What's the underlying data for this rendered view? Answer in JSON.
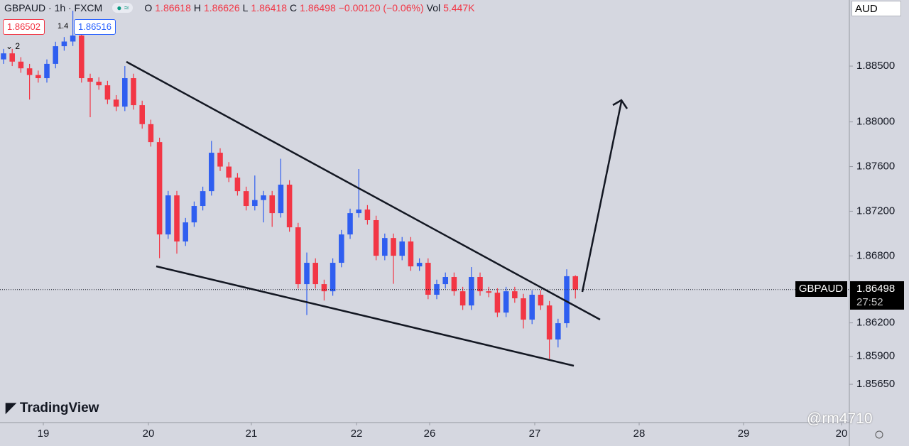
{
  "ui": {
    "symbol": "GBPAUD · 1h · FXCM",
    "o_key": "O",
    "h_key": "H",
    "l_key": "L",
    "c_key": "C",
    "change": "−0.00120 (−0.06%)",
    "vol_key": "Vol",
    "vol": "5.447K",
    "sell": "1.86502",
    "spread": "1.4",
    "buy": "1.86516",
    "indicators": "2",
    "currency": "AUD",
    "price_tag": "GBPAUD",
    "countdown": "27:52",
    "brand": "TradingView",
    "watermark": "@rm4710"
  },
  "chart_data": {
    "type": "candlestick",
    "up_color": "#2f5ef0",
    "down_color": "#f23645",
    "open": [
      1.8856,
      1.88614,
      1.8854,
      1.8848,
      1.8842,
      1.88392,
      1.8852,
      1.88678,
      1.8872,
      1.88774,
      1.88392,
      1.8836,
      1.88328,
      1.882,
      1.88137,
      1.88392,
      1.8815,
      1.8798,
      1.87819,
      1.86992,
      1.87342,
      1.86929,
      1.871,
      1.87247,
      1.8738,
      1.87724,
      1.876,
      1.87501,
      1.8738,
      1.87247,
      1.873,
      1.87342,
      1.87183,
      1.87438,
      1.87056,
      1.86547,
      1.86738,
      1.86547,
      1.86483,
      1.86738,
      1.86992,
      1.87183,
      1.87215,
      1.8712,
      1.86801,
      1.8696,
      1.86801,
      1.86929,
      1.86706,
      1.86738,
      1.86452,
      1.86547,
      1.86611,
      1.86483,
      1.86356,
      1.86611,
      1.86483,
      1.8647,
      1.86292,
      1.86483,
      1.8642,
      1.86229,
      1.86452,
      1.86356,
      1.86051,
      1.86197,
      1.86618
    ],
    "high": [
      1.88654,
      1.88654,
      1.8858,
      1.8852,
      1.8846,
      1.8856,
      1.88718,
      1.8876,
      1.88996,
      1.88814,
      1.88432,
      1.884,
      1.88368,
      1.8824,
      1.885,
      1.88432,
      1.8819,
      1.8802,
      1.87859,
      1.87382,
      1.87382,
      1.8714,
      1.87287,
      1.8742,
      1.8783,
      1.87764,
      1.8764,
      1.87541,
      1.8742,
      1.8752,
      1.87382,
      1.87382,
      1.8767,
      1.87478,
      1.87096,
      1.8683,
      1.86778,
      1.86587,
      1.86778,
      1.87032,
      1.87223,
      1.87578,
      1.87255,
      1.8716,
      1.87,
      1.87,
      1.86969,
      1.86969,
      1.86778,
      1.86778,
      1.86587,
      1.86651,
      1.86651,
      1.86523,
      1.867,
      1.86651,
      1.86523,
      1.8651,
      1.86523,
      1.86523,
      1.8646,
      1.86492,
      1.86492,
      1.86396,
      1.86237,
      1.8668,
      1.86626
    ],
    "low": [
      1.8852,
      1.885,
      1.8844,
      1.882,
      1.88352,
      1.88352,
      1.8848,
      1.88638,
      1.8868,
      1.88352,
      1.88042,
      1.88288,
      1.8816,
      1.88097,
      1.88097,
      1.8811,
      1.8794,
      1.87779,
      1.8678,
      1.86952,
      1.8682,
      1.86889,
      1.8706,
      1.87207,
      1.8734,
      1.8756,
      1.87461,
      1.8734,
      1.87207,
      1.87207,
      1.871,
      1.8706,
      1.87143,
      1.87016,
      1.86507,
      1.8627,
      1.86507,
      1.864,
      1.86443,
      1.86698,
      1.86952,
      1.87143,
      1.8708,
      1.86761,
      1.86761,
      1.8655,
      1.86761,
      1.86666,
      1.86666,
      1.86412,
      1.86412,
      1.86507,
      1.86443,
      1.86316,
      1.86316,
      1.86443,
      1.8643,
      1.86252,
      1.86252,
      1.8638,
      1.8615,
      1.86189,
      1.86316,
      1.85879,
      1.8598,
      1.86157,
      1.86418
    ],
    "close": [
      1.88614,
      1.8854,
      1.8848,
      1.8842,
      1.88392,
      1.8852,
      1.88678,
      1.8872,
      1.88774,
      1.88392,
      1.8836,
      1.88328,
      1.882,
      1.88137,
      1.88392,
      1.8815,
      1.8798,
      1.87819,
      1.86992,
      1.87342,
      1.86929,
      1.871,
      1.87247,
      1.8738,
      1.87724,
      1.876,
      1.87501,
      1.8738,
      1.87247,
      1.873,
      1.87342,
      1.87183,
      1.87438,
      1.87056,
      1.86547,
      1.86738,
      1.86547,
      1.86483,
      1.86738,
      1.86992,
      1.87183,
      1.87215,
      1.8712,
      1.86801,
      1.8696,
      1.86801,
      1.86929,
      1.86706,
      1.86738,
      1.86452,
      1.86547,
      1.86611,
      1.86483,
      1.86356,
      1.86611,
      1.86483,
      1.8647,
      1.86292,
      1.86483,
      1.8642,
      1.86229,
      1.86452,
      1.86356,
      1.86051,
      1.86197,
      1.86618,
      1.86498
    ],
    "ylim": [
      1.85307,
      1.89092
    ],
    "yticks": [
      {
        "value": 1.885,
        "label": "1.88500"
      },
      {
        "value": 1.88,
        "label": "1.88000"
      },
      {
        "value": 1.876,
        "label": "1.87600"
      },
      {
        "value": 1.872,
        "label": "1.87200"
      },
      {
        "value": 1.868,
        "label": "1.86800"
      },
      {
        "value": 1.862,
        "label": "1.86200"
      },
      {
        "value": 1.859,
        "label": "1.85900"
      },
      {
        "value": 1.8565,
        "label": "1.85650"
      }
    ],
    "xlim": [
      -0.41,
      97.62
    ],
    "xticks": [
      {
        "value": 4.59,
        "label": "19"
      },
      {
        "value": 16.72,
        "label": "20"
      },
      {
        "value": 28.6,
        "label": "21"
      },
      {
        "value": 40.74,
        "label": "22"
      },
      {
        "value": 49.18,
        "label": "26"
      },
      {
        "value": 61.31,
        "label": "27"
      },
      {
        "value": 73.36,
        "label": "28"
      },
      {
        "value": 85.41,
        "label": "29"
      },
      {
        "value": 96.72,
        "label": "20"
      }
    ]
  }
}
